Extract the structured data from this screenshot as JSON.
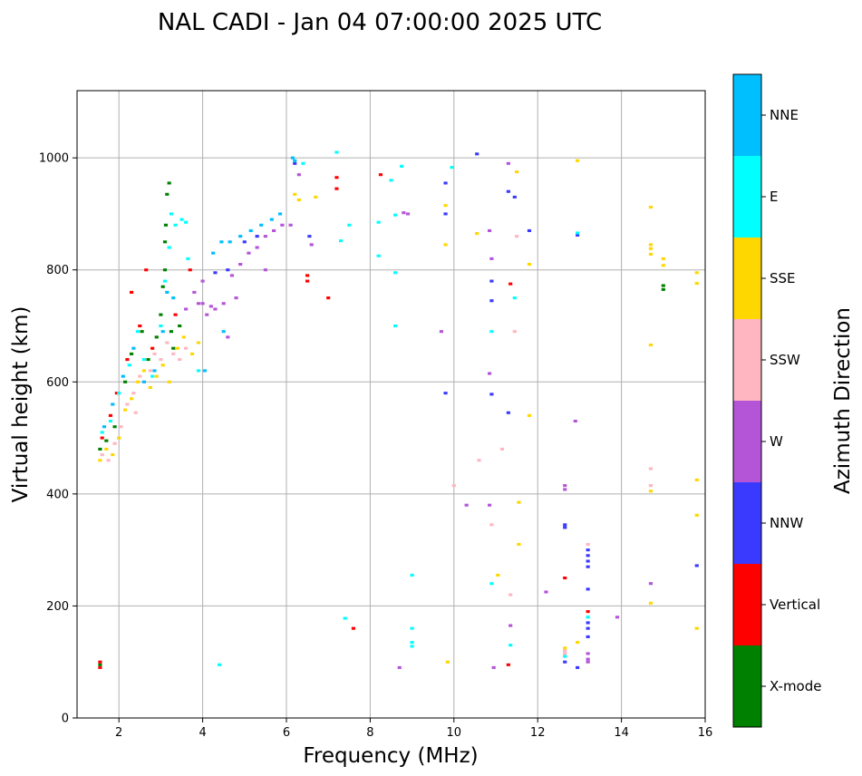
{
  "chart_data": {
    "type": "scatter",
    "title": "NAL CADI - Jan 04 07:00:00 2025 UTC",
    "xlabel": "Frequency (MHz)",
    "ylabel": "Virtual height (km)",
    "xlim": [
      1,
      16
    ],
    "ylim": [
      0,
      1120
    ],
    "xticks": [
      2,
      4,
      6,
      8,
      10,
      12,
      14,
      16
    ],
    "yticks": [
      0,
      200,
      400,
      600,
      800,
      1000
    ],
    "grid": true,
    "colorbar": {
      "label": "Azimuth Direction",
      "placement": "right",
      "categories": [
        {
          "name": "X-mode",
          "color": "#008000"
        },
        {
          "name": "Vertical",
          "color": "#ff0000"
        },
        {
          "name": "NNW",
          "color": "#3a3aff"
        },
        {
          "name": "W",
          "color": "#b455d8"
        },
        {
          "name": "SSW",
          "color": "#ffb6c1"
        },
        {
          "name": "SSE",
          "color": "#ffd700"
        },
        {
          "name": "E",
          "color": "#00ffff"
        },
        {
          "name": "NNE",
          "color": "#00bfff"
        }
      ]
    },
    "series": [
      {
        "name": "X-mode",
        "points": [
          [
            1.55,
            480
          ],
          [
            1.7,
            495
          ],
          [
            1.9,
            520
          ],
          [
            2.15,
            600
          ],
          [
            2.3,
            650
          ],
          [
            2.55,
            690
          ],
          [
            2.7,
            640
          ],
          [
            2.9,
            680
          ],
          [
            3.0,
            720
          ],
          [
            3.05,
            770
          ],
          [
            3.1,
            800
          ],
          [
            3.1,
            850
          ],
          [
            3.12,
            880
          ],
          [
            3.15,
            935
          ],
          [
            3.2,
            955
          ],
          [
            3.25,
            690
          ],
          [
            3.3,
            660
          ],
          [
            3.45,
            700
          ],
          [
            1.55,
            95
          ],
          [
            15.0,
            765
          ],
          [
            15.0,
            772
          ]
        ]
      },
      {
        "name": "Vertical",
        "points": [
          [
            1.6,
            500
          ],
          [
            1.8,
            540
          ],
          [
            1.95,
            580
          ],
          [
            2.2,
            640
          ],
          [
            2.3,
            760
          ],
          [
            2.5,
            700
          ],
          [
            2.65,
            800
          ],
          [
            2.8,
            660
          ],
          [
            3.35,
            720
          ],
          [
            3.7,
            800
          ],
          [
            1.55,
            100
          ],
          [
            6.5,
            790
          ],
          [
            6.5,
            780
          ],
          [
            7.0,
            750
          ],
          [
            7.2,
            945
          ],
          [
            7.2,
            965
          ],
          [
            7.6,
            160
          ],
          [
            8.25,
            970
          ],
          [
            11.35,
            775
          ],
          [
            11.3,
            95
          ],
          [
            12.65,
            250
          ],
          [
            13.2,
            190
          ],
          [
            1.55,
            90
          ]
        ]
      },
      {
        "name": "NNW",
        "points": [
          [
            4.3,
            795
          ],
          [
            4.6,
            800
          ],
          [
            5.0,
            850
          ],
          [
            5.3,
            860
          ],
          [
            6.2,
            990
          ],
          [
            6.55,
            860
          ],
          [
            9.8,
            900
          ],
          [
            9.8,
            955
          ],
          [
            9.8,
            580
          ],
          [
            10.55,
            1007
          ],
          [
            10.9,
            780
          ],
          [
            10.9,
            745
          ],
          [
            10.9,
            578
          ],
          [
            11.3,
            545
          ],
          [
            11.8,
            870
          ],
          [
            12.65,
            345
          ],
          [
            12.65,
            340
          ],
          [
            12.65,
            100
          ],
          [
            12.95,
            862
          ],
          [
            12.95,
            90
          ],
          [
            13.2,
            300
          ],
          [
            13.2,
            290
          ],
          [
            13.2,
            280
          ],
          [
            13.2,
            270
          ],
          [
            13.2,
            230
          ],
          [
            13.2,
            170
          ],
          [
            13.2,
            160
          ],
          [
            13.2,
            145
          ],
          [
            15.8,
            272
          ],
          [
            11.3,
            940
          ],
          [
            11.45,
            930
          ]
        ]
      },
      {
        "name": "W",
        "points": [
          [
            3.6,
            730
          ],
          [
            3.8,
            760
          ],
          [
            3.9,
            740
          ],
          [
            4.0,
            740
          ],
          [
            4.1,
            720
          ],
          [
            4.2,
            735
          ],
          [
            4.3,
            730
          ],
          [
            4.5,
            740
          ],
          [
            4.7,
            790
          ],
          [
            4.9,
            810
          ],
          [
            5.1,
            830
          ],
          [
            5.3,
            840
          ],
          [
            5.5,
            860
          ],
          [
            5.7,
            870
          ],
          [
            5.9,
            880
          ],
          [
            6.1,
            880
          ],
          [
            4.8,
            750
          ],
          [
            5.5,
            800
          ],
          [
            4.0,
            780
          ],
          [
            4.6,
            680
          ],
          [
            6.3,
            970
          ],
          [
            6.6,
            845
          ],
          [
            8.8,
            902
          ],
          [
            8.9,
            900
          ],
          [
            9.7,
            690
          ],
          [
            10.3,
            380
          ],
          [
            10.85,
            380
          ],
          [
            10.85,
            615
          ],
          [
            10.85,
            870
          ],
          [
            10.9,
            820
          ],
          [
            11.3,
            990
          ],
          [
            11.35,
            165
          ],
          [
            12.2,
            225
          ],
          [
            12.65,
            415
          ],
          [
            12.65,
            408
          ],
          [
            12.9,
            530
          ],
          [
            13.2,
            115
          ],
          [
            13.2,
            105
          ],
          [
            13.2,
            100
          ],
          [
            13.9,
            180
          ],
          [
            14.7,
            240
          ],
          [
            8.7,
            90
          ],
          [
            10.95,
            90
          ]
        ]
      },
      {
        "name": "SSW",
        "points": [
          [
            1.6,
            470
          ],
          [
            1.75,
            460
          ],
          [
            1.9,
            490
          ],
          [
            2.05,
            520
          ],
          [
            2.2,
            560
          ],
          [
            2.35,
            580
          ],
          [
            2.5,
            610
          ],
          [
            2.6,
            600
          ],
          [
            2.75,
            620
          ],
          [
            2.85,
            650
          ],
          [
            3.0,
            640
          ],
          [
            3.15,
            670
          ],
          [
            3.3,
            650
          ],
          [
            3.45,
            640
          ],
          [
            3.6,
            660
          ],
          [
            10.0,
            415
          ],
          [
            10.6,
            460
          ],
          [
            10.9,
            345
          ],
          [
            11.15,
            480
          ],
          [
            11.35,
            220
          ],
          [
            11.45,
            690
          ],
          [
            11.5,
            860
          ],
          [
            12.65,
            120
          ],
          [
            12.65,
            115
          ],
          [
            13.2,
            310
          ],
          [
            14.7,
            445
          ],
          [
            14.7,
            415
          ],
          [
            2.4,
            545
          ]
        ]
      },
      {
        "name": "SSE",
        "points": [
          [
            1.55,
            460
          ],
          [
            1.7,
            480
          ],
          [
            1.85,
            470
          ],
          [
            2.0,
            500
          ],
          [
            2.15,
            550
          ],
          [
            2.3,
            570
          ],
          [
            2.45,
            600
          ],
          [
            2.6,
            620
          ],
          [
            2.75,
            590
          ],
          [
            2.9,
            610
          ],
          [
            3.05,
            630
          ],
          [
            3.2,
            600
          ],
          [
            3.4,
            660
          ],
          [
            3.55,
            680
          ],
          [
            3.75,
            650
          ],
          [
            3.9,
            670
          ],
          [
            6.2,
            935
          ],
          [
            6.3,
            925
          ],
          [
            6.7,
            930
          ],
          [
            9.8,
            915
          ],
          [
            9.8,
            845
          ],
          [
            9.85,
            100
          ],
          [
            10.55,
            865
          ],
          [
            11.05,
            255
          ],
          [
            11.5,
            975
          ],
          [
            11.55,
            385
          ],
          [
            11.55,
            310
          ],
          [
            11.8,
            540
          ],
          [
            11.8,
            810
          ],
          [
            12.65,
            125
          ],
          [
            12.95,
            995
          ],
          [
            12.95,
            135
          ],
          [
            14.7,
            912
          ],
          [
            14.7,
            845
          ],
          [
            14.7,
            838
          ],
          [
            14.7,
            828
          ],
          [
            14.7,
            666
          ],
          [
            14.7,
            405
          ],
          [
            14.7,
            205
          ],
          [
            15.0,
            820
          ],
          [
            15.0,
            808
          ],
          [
            15.8,
            795
          ],
          [
            15.8,
            776
          ],
          [
            15.8,
            425
          ],
          [
            15.8,
            362
          ],
          [
            15.8,
            160
          ]
        ]
      },
      {
        "name": "E",
        "points": [
          [
            1.6,
            510
          ],
          [
            1.8,
            530
          ],
          [
            2.0,
            580
          ],
          [
            2.25,
            630
          ],
          [
            2.45,
            690
          ],
          [
            2.6,
            640
          ],
          [
            2.8,
            610
          ],
          [
            3.0,
            700
          ],
          [
            3.1,
            780
          ],
          [
            3.2,
            840
          ],
          [
            3.25,
            900
          ],
          [
            3.35,
            880
          ],
          [
            3.5,
            890
          ],
          [
            3.65,
            820
          ],
          [
            3.9,
            620
          ],
          [
            4.4,
            95
          ],
          [
            6.4,
            990
          ],
          [
            7.2,
            1010
          ],
          [
            7.4,
            178
          ],
          [
            7.5,
            880
          ],
          [
            8.2,
            885
          ],
          [
            8.2,
            825
          ],
          [
            8.5,
            960
          ],
          [
            8.6,
            898
          ],
          [
            8.6,
            795
          ],
          [
            8.6,
            700
          ],
          [
            8.75,
            985
          ],
          [
            9.0,
            255
          ],
          [
            9.0,
            160
          ],
          [
            9.0,
            135
          ],
          [
            9.0,
            128
          ],
          [
            9.95,
            983
          ],
          [
            10.9,
            240
          ],
          [
            10.9,
            690
          ],
          [
            11.35,
            130
          ],
          [
            11.45,
            750
          ],
          [
            12.65,
            110
          ],
          [
            12.95,
            866
          ],
          [
            13.2,
            180
          ],
          [
            3.6,
            885
          ],
          [
            7.3,
            852
          ]
        ]
      },
      {
        "name": "NNE",
        "points": [
          [
            1.65,
            520
          ],
          [
            1.85,
            560
          ],
          [
            2.1,
            610
          ],
          [
            2.35,
            660
          ],
          [
            2.6,
            600
          ],
          [
            2.85,
            620
          ],
          [
            3.05,
            690
          ],
          [
            3.15,
            760
          ],
          [
            3.3,
            750
          ],
          [
            4.25,
            830
          ],
          [
            4.45,
            850
          ],
          [
            4.65,
            850
          ],
          [
            4.9,
            860
          ],
          [
            5.15,
            870
          ],
          [
            5.4,
            880
          ],
          [
            5.65,
            890
          ],
          [
            5.85,
            900
          ],
          [
            6.15,
            1000
          ],
          [
            6.2,
            995
          ],
          [
            4.5,
            690
          ],
          [
            4.05,
            620
          ]
        ]
      }
    ]
  }
}
